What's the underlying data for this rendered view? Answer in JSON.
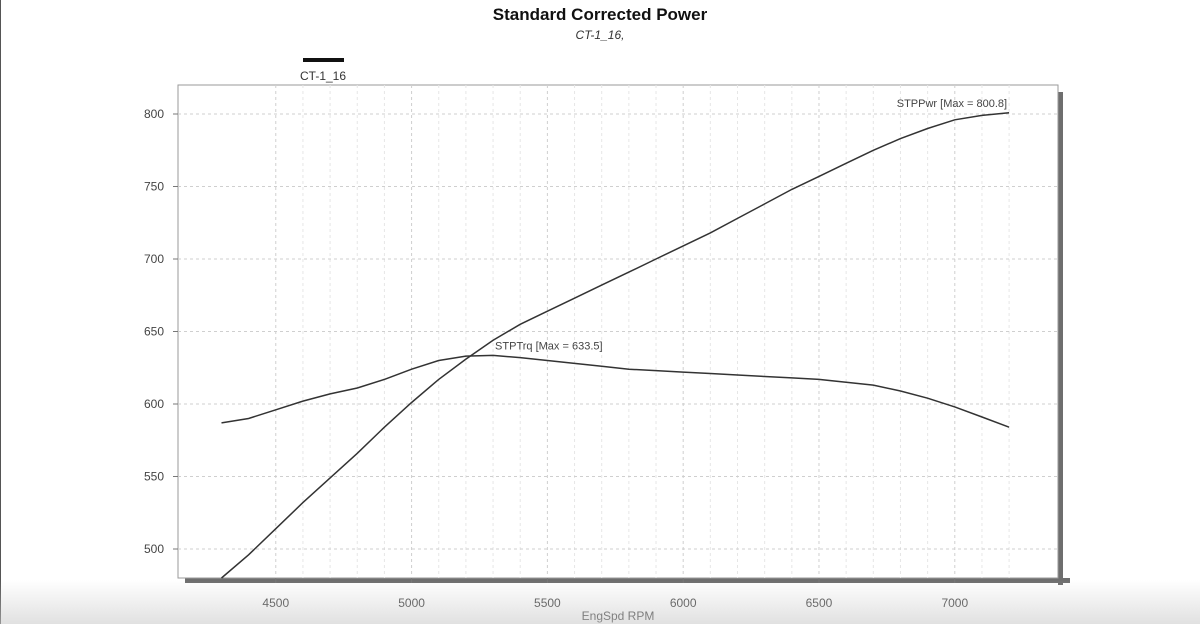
{
  "chart_data": {
    "type": "line",
    "title": "Standard Corrected Power",
    "subtitle": "CT-1_16,",
    "xlabel": "EngSpd  RPM",
    "ylabel": "",
    "xlim": [
      4140,
      7380
    ],
    "ylim": [
      480,
      820
    ],
    "xticks": [
      4500,
      5000,
      5500,
      6000,
      6500,
      7000
    ],
    "yticks": [
      500,
      550,
      600,
      650,
      700,
      750,
      800
    ],
    "grid": true,
    "legend": {
      "position": "top-left",
      "entries": [
        {
          "label": "CT-1_16",
          "color": "#111111"
        }
      ]
    },
    "series": [
      {
        "name": "STPPwr",
        "annotation": "STPPwr [Max = 800.8]",
        "color": "#333333",
        "x": [
          4300,
          4400,
          4500,
          4600,
          4700,
          4800,
          4900,
          5000,
          5100,
          5200,
          5300,
          5400,
          5500,
          5600,
          5700,
          5800,
          5900,
          6000,
          6100,
          6200,
          6300,
          6400,
          6500,
          6600,
          6700,
          6800,
          6900,
          7000,
          7100,
          7200
        ],
        "y": [
          480,
          496,
          514,
          532,
          549,
          566,
          584,
          601,
          617,
          631,
          644,
          655,
          664,
          673,
          682,
          691,
          700,
          709,
          718,
          728,
          738,
          748,
          757,
          766,
          775,
          783,
          790,
          796,
          799,
          800.8
        ]
      },
      {
        "name": "STPTrq",
        "annotation": "STPTrq [Max = 633.5]",
        "color": "#333333",
        "x": [
          4300,
          4400,
          4500,
          4600,
          4700,
          4800,
          4900,
          5000,
          5100,
          5200,
          5300,
          5400,
          5500,
          5600,
          5700,
          5800,
          5900,
          6000,
          6100,
          6200,
          6300,
          6400,
          6500,
          6600,
          6700,
          6800,
          6900,
          7000,
          7100,
          7200
        ],
        "y": [
          587,
          590,
          596,
          602,
          607,
          611,
          617,
          624,
          630,
          633,
          633.5,
          632,
          630,
          628,
          626,
          624,
          623,
          622,
          621,
          620,
          619,
          618,
          617,
          615,
          613,
          609,
          604,
          598,
          591,
          584
        ]
      }
    ]
  }
}
